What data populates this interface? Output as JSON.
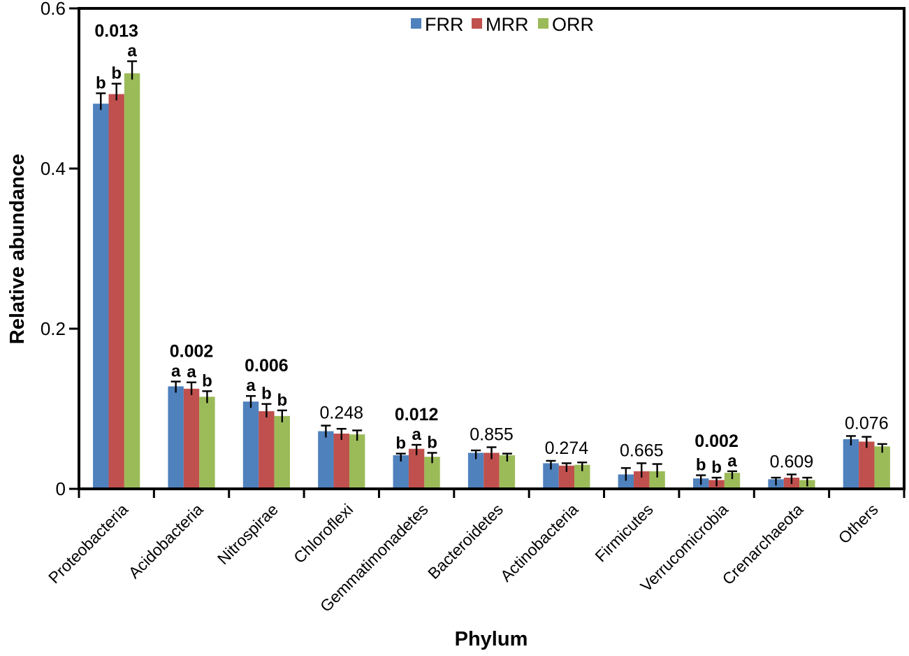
{
  "chart_data": {
    "type": "bar",
    "title": "",
    "xlabel": "Phylum",
    "ylabel": "Relative abundance",
    "ylim": [
      0,
      0.6
    ],
    "yticks": [
      0,
      0.2,
      0.4,
      0.6
    ],
    "ytick_labels": [
      "0",
      "0.2",
      "0.4",
      "0.6"
    ],
    "grid": false,
    "legend_position": "top-center",
    "legend": [
      "FRR",
      "MRR",
      "ORR"
    ],
    "categories": [
      "Proteobacteria",
      "Acidobacteria",
      "Nitrospirae",
      "Chloroflexi",
      "Gemmatimonadetes",
      "Bacteroidetes",
      "Actinobacteria",
      "Firmicutes",
      "Verrucomicrobia",
      "Crenarchaeota",
      "Others"
    ],
    "series": [
      {
        "name": "FRR",
        "color": "#4F81BD",
        "values": [
          0.481,
          0.128,
          0.109,
          0.072,
          0.042,
          0.045,
          0.032,
          0.018,
          0.013,
          0.012,
          0.062
        ],
        "errors": [
          0.013,
          0.006,
          0.007,
          0.007,
          0.002,
          0.003,
          0.003,
          0.008,
          0.004,
          0.002,
          0.004
        ]
      },
      {
        "name": "MRR",
        "color": "#C0504D",
        "values": [
          0.493,
          0.125,
          0.097,
          0.069,
          0.05,
          0.045,
          0.029,
          0.022,
          0.011,
          0.014,
          0.059
        ],
        "errors": [
          0.013,
          0.008,
          0.009,
          0.006,
          0.005,
          0.007,
          0.003,
          0.01,
          0.003,
          0.004,
          0.006
        ]
      },
      {
        "name": "ORR",
        "color": "#9BBB59",
        "values": [
          0.519,
          0.115,
          0.091,
          0.068,
          0.04,
          0.042,
          0.03,
          0.022,
          0.02,
          0.011,
          0.053
        ],
        "errors": [
          0.015,
          0.007,
          0.007,
          0.005,
          0.005,
          0.002,
          0.003,
          0.009,
          0.002,
          0.003,
          0.003
        ]
      }
    ],
    "annotations": [
      {
        "category": "Proteobacteria",
        "p_value": "0.013",
        "significant": true,
        "letters": [
          "b",
          "b",
          "a"
        ]
      },
      {
        "category": "Acidobacteria",
        "p_value": "0.002",
        "significant": true,
        "letters": [
          "a",
          "a",
          "b"
        ]
      },
      {
        "category": "Nitrospirae",
        "p_value": "0.006",
        "significant": true,
        "letters": [
          "a",
          "b",
          "b"
        ]
      },
      {
        "category": "Chloroflexi",
        "p_value": "0.248",
        "significant": false,
        "letters": []
      },
      {
        "category": "Gemmatimonadetes",
        "p_value": "0.012",
        "significant": true,
        "letters": [
          "b",
          "a",
          "b"
        ]
      },
      {
        "category": "Bacteroidetes",
        "p_value": "0.855",
        "significant": false,
        "letters": []
      },
      {
        "category": "Actinobacteria",
        "p_value": "0.274",
        "significant": false,
        "letters": []
      },
      {
        "category": "Firmicutes",
        "p_value": "0.665",
        "significant": false,
        "letters": []
      },
      {
        "category": "Verrucomicrobia",
        "p_value": "0.002",
        "significant": true,
        "letters": [
          "b",
          "b",
          "a"
        ]
      },
      {
        "category": "Crenarchaeota",
        "p_value": "0.609",
        "significant": false,
        "letters": []
      },
      {
        "category": "Others",
        "p_value": "0.076",
        "significant": false,
        "letters": []
      }
    ],
    "colors": {
      "axis": "#000000",
      "background": "#ffffff"
    }
  }
}
